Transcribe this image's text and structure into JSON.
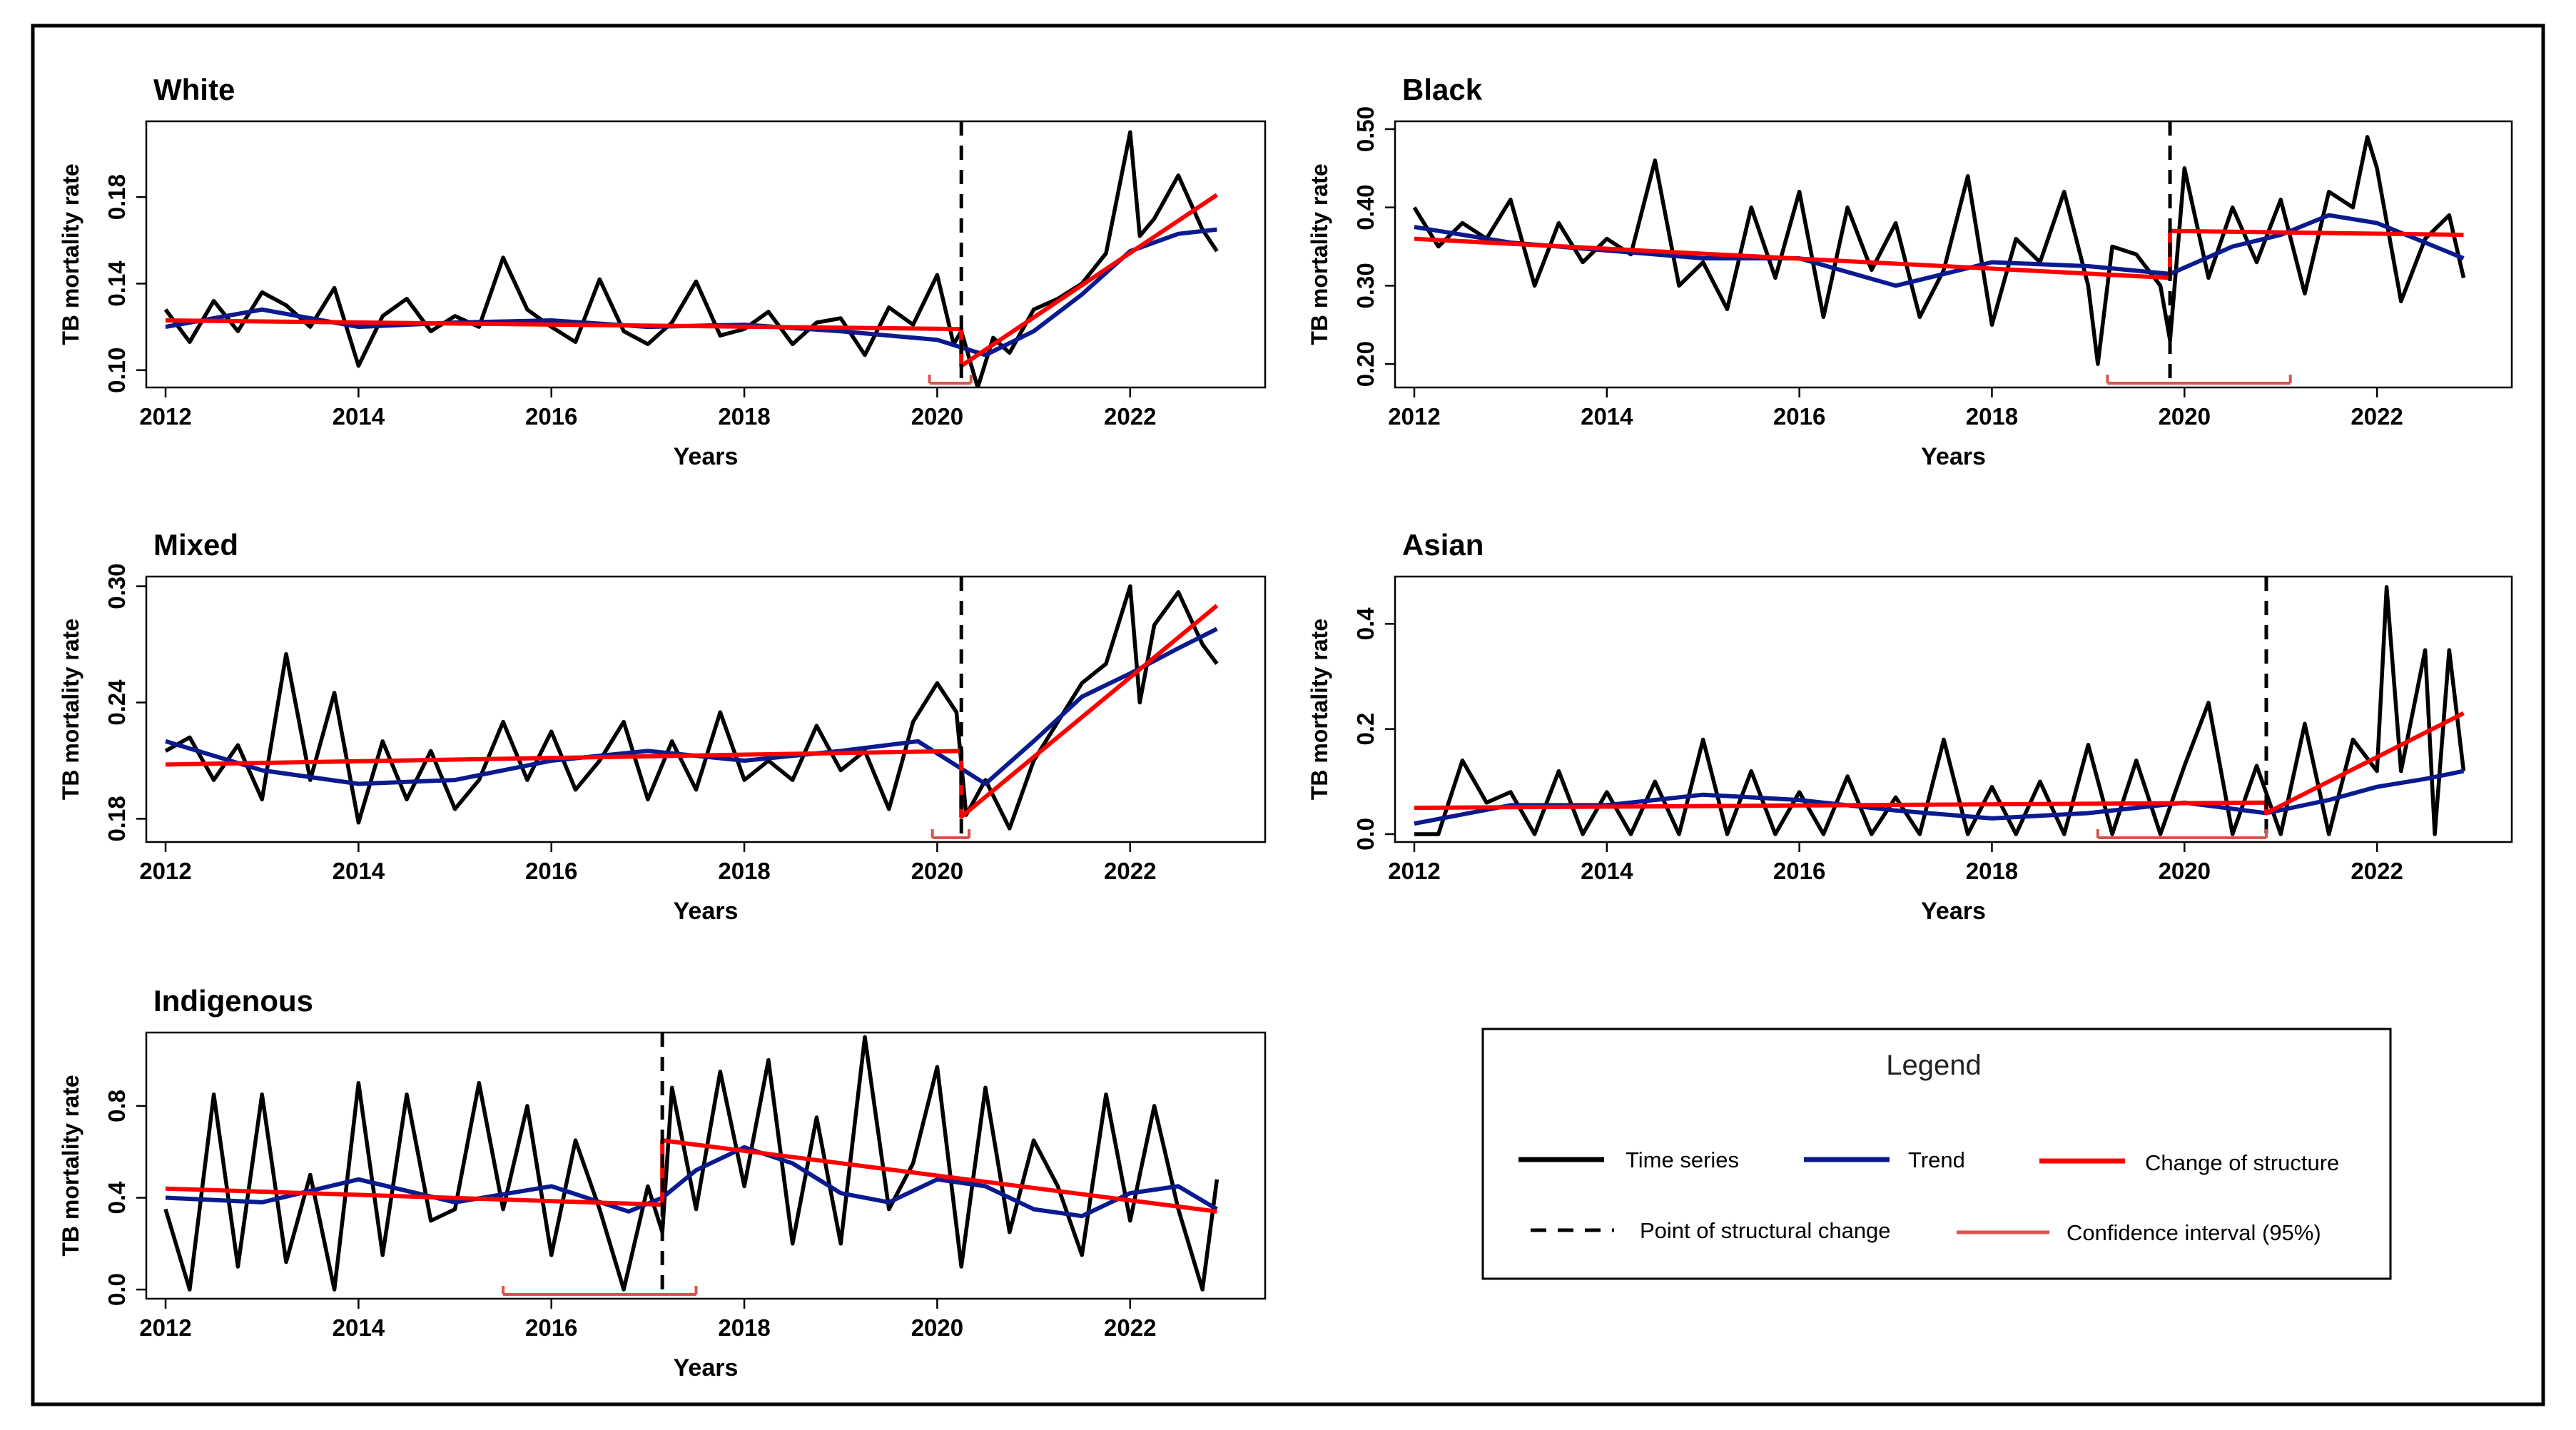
{
  "chart_data": [
    {
      "type": "line",
      "title": "White",
      "xlabel": "Years",
      "ylabel": "TB mortality rate",
      "xlim": [
        2011.8,
        2023.4
      ],
      "ylim": [
        0.092,
        0.215
      ],
      "xticks": [
        2012,
        2014,
        2016,
        2018,
        2020,
        2022
      ],
      "yticks": [
        0.1,
        0.14,
        0.18
      ],
      "ytick_labels": [
        "0.10",
        "0.14",
        "0.18"
      ],
      "break_x": 2020.25,
      "ci": [
        2019.92,
        2020.35
      ],
      "series": [
        {
          "role": "time-series",
          "x": [
            2012,
            2012.25,
            2012.5,
            2012.75,
            2013,
            2013.25,
            2013.5,
            2013.75,
            2014,
            2014.25,
            2014.5,
            2014.75,
            2015,
            2015.25,
            2015.5,
            2015.75,
            2016,
            2016.25,
            2016.5,
            2016.75,
            2017,
            2017.25,
            2017.5,
            2017.75,
            2018,
            2018.25,
            2018.5,
            2018.75,
            2019,
            2019.25,
            2019.5,
            2019.75,
            2020,
            2020.17,
            2020.25,
            2020.42,
            2020.58,
            2020.75,
            2021,
            2021.25,
            2021.5,
            2021.75,
            2022,
            2022.1,
            2022.25,
            2022.5,
            2022.75,
            2022.9
          ],
          "y": [
            0.128,
            0.113,
            0.132,
            0.118,
            0.136,
            0.13,
            0.12,
            0.138,
            0.102,
            0.125,
            0.133,
            0.118,
            0.125,
            0.12,
            0.152,
            0.128,
            0.12,
            0.113,
            0.142,
            0.118,
            0.112,
            0.122,
            0.141,
            0.116,
            0.119,
            0.127,
            0.112,
            0.122,
            0.124,
            0.107,
            0.129,
            0.121,
            0.144,
            0.112,
            0.118,
            0.092,
            0.115,
            0.108,
            0.128,
            0.133,
            0.14,
            0.154,
            0.21,
            0.162,
            0.17,
            0.19,
            0.165,
            0.155
          ]
        },
        {
          "role": "trend",
          "x": [
            2012,
            2013,
            2014,
            2015,
            2016,
            2017,
            2018,
            2019,
            2020,
            2020.5,
            2021,
            2021.5,
            2022,
            2022.5,
            2022.9
          ],
          "y": [
            0.12,
            0.128,
            0.12,
            0.122,
            0.123,
            0.12,
            0.121,
            0.118,
            0.114,
            0.107,
            0.118,
            0.135,
            0.155,
            0.163,
            0.165
          ]
        },
        {
          "role": "change-of-structure",
          "x": [
            2012,
            2020.25,
            2020.25,
            2022.9
          ],
          "y": [
            0.123,
            0.119,
            0.102,
            0.181
          ]
        }
      ]
    },
    {
      "type": "line",
      "title": "Black",
      "xlabel": "Years",
      "ylabel": "TB mortality rate",
      "xlim": [
        2011.8,
        2023.4
      ],
      "ylim": [
        0.17,
        0.51
      ],
      "xticks": [
        2012,
        2014,
        2016,
        2018,
        2020,
        2022
      ],
      "yticks": [
        0.2,
        0.3,
        0.4,
        0.5
      ],
      "ytick_labels": [
        "0.20",
        "0.30",
        "0.40",
        "0.50"
      ],
      "break_x": 2019.85,
      "ci": [
        2019.2,
        2021.1
      ],
      "series": [
        {
          "role": "time-series",
          "x": [
            2012,
            2012.25,
            2012.5,
            2012.75,
            2013,
            2013.25,
            2013.5,
            2013.75,
            2014,
            2014.25,
            2014.5,
            2014.75,
            2015,
            2015.25,
            2015.5,
            2015.75,
            2016,
            2016.25,
            2016.5,
            2016.75,
            2017,
            2017.25,
            2017.5,
            2017.75,
            2018,
            2018.25,
            2018.5,
            2018.75,
            2019,
            2019.1,
            2019.25,
            2019.5,
            2019.75,
            2019.85,
            2020,
            2020.25,
            2020.5,
            2020.75,
            2021,
            2021.25,
            2021.5,
            2021.75,
            2021.9,
            2022,
            2022.25,
            2022.5,
            2022.75,
            2022.9
          ],
          "y": [
            0.4,
            0.35,
            0.38,
            0.36,
            0.41,
            0.3,
            0.38,
            0.33,
            0.36,
            0.34,
            0.46,
            0.3,
            0.33,
            0.27,
            0.4,
            0.31,
            0.42,
            0.26,
            0.4,
            0.32,
            0.38,
            0.26,
            0.32,
            0.44,
            0.25,
            0.36,
            0.33,
            0.42,
            0.3,
            0.2,
            0.35,
            0.34,
            0.3,
            0.23,
            0.45,
            0.31,
            0.4,
            0.33,
            0.41,
            0.29,
            0.42,
            0.4,
            0.49,
            0.45,
            0.28,
            0.36,
            0.39,
            0.31
          ]
        },
        {
          "role": "trend",
          "x": [
            2012,
            2013,
            2014,
            2015,
            2016,
            2017,
            2018,
            2019,
            2019.85,
            2020.5,
            2021,
            2021.5,
            2022,
            2022.5,
            2022.9
          ],
          "y": [
            0.375,
            0.355,
            0.345,
            0.335,
            0.335,
            0.3,
            0.33,
            0.325,
            0.315,
            0.35,
            0.365,
            0.39,
            0.38,
            0.355,
            0.335
          ]
        },
        {
          "role": "change-of-structure",
          "x": [
            2012,
            2019.85,
            2019.85,
            2022.9
          ],
          "y": [
            0.36,
            0.31,
            0.37,
            0.365
          ]
        }
      ]
    },
    {
      "type": "line",
      "title": "Mixed",
      "xlabel": "Years",
      "ylabel": "TB mortality rate",
      "xlim": [
        2011.8,
        2023.4
      ],
      "ylim": [
        0.168,
        0.305
      ],
      "xticks": [
        2012,
        2014,
        2016,
        2018,
        2020,
        2022
      ],
      "yticks": [
        0.18,
        0.24,
        0.3
      ],
      "ytick_labels": [
        "0.18",
        "0.24",
        "0.30"
      ],
      "break_x": 2020.25,
      "ci": [
        2019.95,
        2020.33
      ],
      "series": [
        {
          "role": "time-series",
          "x": [
            2012,
            2012.25,
            2012.5,
            2012.75,
            2013,
            2013.25,
            2013.5,
            2013.75,
            2014,
            2014.25,
            2014.5,
            2014.75,
            2015,
            2015.25,
            2015.5,
            2015.75,
            2016,
            2016.25,
            2016.5,
            2016.75,
            2017,
            2017.25,
            2017.5,
            2017.75,
            2018,
            2018.25,
            2018.5,
            2018.75,
            2019,
            2019.25,
            2019.5,
            2019.75,
            2020,
            2020.2,
            2020.3,
            2020.5,
            2020.75,
            2021,
            2021.25,
            2021.5,
            2021.75,
            2022,
            2022.1,
            2022.25,
            2022.5,
            2022.75,
            2022.9
          ],
          "y": [
            0.215,
            0.222,
            0.2,
            0.218,
            0.19,
            0.265,
            0.2,
            0.245,
            0.178,
            0.22,
            0.19,
            0.215,
            0.185,
            0.2,
            0.23,
            0.2,
            0.225,
            0.195,
            0.21,
            0.23,
            0.19,
            0.22,
            0.195,
            0.235,
            0.2,
            0.21,
            0.2,
            0.228,
            0.205,
            0.215,
            0.185,
            0.23,
            0.25,
            0.235,
            0.182,
            0.2,
            0.175,
            0.21,
            0.23,
            0.25,
            0.26,
            0.3,
            0.24,
            0.28,
            0.297,
            0.27,
            0.26
          ]
        },
        {
          "role": "trend",
          "x": [
            2012,
            2013,
            2014,
            2015,
            2016,
            2017,
            2018,
            2019,
            2019.8,
            2020.5,
            2021,
            2021.5,
            2022,
            2022.5,
            2022.9
          ],
          "y": [
            0.22,
            0.205,
            0.198,
            0.2,
            0.21,
            0.215,
            0.21,
            0.215,
            0.22,
            0.198,
            0.22,
            0.243,
            0.255,
            0.268,
            0.278
          ]
        },
        {
          "role": "change-of-structure",
          "x": [
            2012,
            2020.25,
            2020.25,
            2022.9
          ],
          "y": [
            0.208,
            0.215,
            0.181,
            0.29
          ]
        }
      ]
    },
    {
      "type": "line",
      "title": "Asian",
      "xlabel": "Years",
      "ylabel": "TB mortality rate",
      "xlim": [
        2011.8,
        2023.4
      ],
      "ylim": [
        -0.015,
        0.49
      ],
      "xticks": [
        2012,
        2014,
        2016,
        2018,
        2020,
        2022
      ],
      "yticks": [
        0.0,
        0.2,
        0.4
      ],
      "ytick_labels": [
        "0.0",
        "0.2",
        "0.4"
      ],
      "break_x": 2020.85,
      "ci": [
        2019.1,
        2020.85
      ],
      "series": [
        {
          "role": "time-series",
          "x": [
            2012,
            2012.25,
            2012.5,
            2012.75,
            2013,
            2013.25,
            2013.5,
            2013.75,
            2014,
            2014.25,
            2014.5,
            2014.75,
            2015,
            2015.25,
            2015.5,
            2015.75,
            2016,
            2016.25,
            2016.5,
            2016.75,
            2017,
            2017.25,
            2017.5,
            2017.75,
            2018,
            2018.25,
            2018.5,
            2018.75,
            2019,
            2019.25,
            2019.5,
            2019.75,
            2020,
            2020.25,
            2020.5,
            2020.75,
            2021,
            2021.25,
            2021.5,
            2021.75,
            2022,
            2022.1,
            2022.25,
            2022.5,
            2022.6,
            2022.75,
            2022.9
          ],
          "y": [
            0.0,
            0.0,
            0.14,
            0.06,
            0.08,
            0.0,
            0.12,
            0.0,
            0.08,
            0.0,
            0.1,
            0.0,
            0.18,
            0.0,
            0.12,
            0.0,
            0.08,
            0.0,
            0.11,
            0.0,
            0.07,
            0.0,
            0.18,
            0.0,
            0.09,
            0.0,
            0.1,
            0.0,
            0.17,
            0.0,
            0.14,
            0.0,
            0.13,
            0.25,
            0.0,
            0.13,
            0.0,
            0.21,
            0.0,
            0.18,
            0.12,
            0.47,
            0.12,
            0.35,
            0.0,
            0.35,
            0.12
          ]
        },
        {
          "role": "trend",
          "x": [
            2012,
            2013,
            2014,
            2015,
            2016,
            2017,
            2018,
            2019,
            2020,
            2020.85,
            2021.5,
            2022,
            2022.5,
            2022.9
          ],
          "y": [
            0.02,
            0.055,
            0.055,
            0.075,
            0.065,
            0.045,
            0.03,
            0.04,
            0.06,
            0.04,
            0.065,
            0.09,
            0.105,
            0.12
          ]
        },
        {
          "role": "change-of-structure",
          "x": [
            2012,
            2020.85,
            2020.85,
            2022.9
          ],
          "y": [
            0.05,
            0.06,
            0.04,
            0.23
          ]
        }
      ]
    },
    {
      "type": "line",
      "title": "Indigenous",
      "xlabel": "Years",
      "ylabel": "TB mortality rate",
      "xlim": [
        2011.8,
        2023.4
      ],
      "ylim": [
        -0.04,
        1.12
      ],
      "xticks": [
        2012,
        2014,
        2016,
        2018,
        2020,
        2022
      ],
      "yticks": [
        0.0,
        0.4,
        0.8
      ],
      "ytick_labels": [
        "0.0",
        "0.4",
        "0.8"
      ],
      "break_x": 2017.15,
      "ci": [
        2015.5,
        2017.5
      ],
      "series": [
        {
          "role": "time-series",
          "x": [
            2012,
            2012.25,
            2012.5,
            2012.75,
            2013,
            2013.25,
            2013.5,
            2013.75,
            2014,
            2014.25,
            2014.5,
            2014.75,
            2015,
            2015.25,
            2015.5,
            2015.75,
            2016,
            2016.25,
            2016.5,
            2016.75,
            2017,
            2017.15,
            2017.25,
            2017.5,
            2017.75,
            2018,
            2018.25,
            2018.5,
            2018.75,
            2019,
            2019.25,
            2019.5,
            2019.75,
            2020,
            2020.25,
            2020.5,
            2020.75,
            2021,
            2021.25,
            2021.5,
            2021.75,
            2022,
            2022.25,
            2022.5,
            2022.75,
            2022.9
          ],
          "y": [
            0.35,
            0.0,
            0.85,
            0.1,
            0.85,
            0.12,
            0.5,
            0.0,
            0.9,
            0.15,
            0.85,
            0.3,
            0.35,
            0.9,
            0.35,
            0.8,
            0.15,
            0.65,
            0.35,
            0.0,
            0.45,
            0.25,
            0.88,
            0.35,
            0.95,
            0.45,
            1.0,
            0.2,
            0.75,
            0.2,
            1.1,
            0.35,
            0.55,
            0.97,
            0.1,
            0.88,
            0.25,
            0.65,
            0.45,
            0.15,
            0.85,
            0.3,
            0.8,
            0.35,
            0.0,
            0.48
          ]
        },
        {
          "role": "trend",
          "x": [
            2012,
            2013,
            2014,
            2015,
            2016,
            2016.8,
            2017.15,
            2017.5,
            2018,
            2018.5,
            2019,
            2019.5,
            2020,
            2020.5,
            2021,
            2021.5,
            2022,
            2022.5,
            2022.9
          ],
          "y": [
            0.4,
            0.38,
            0.48,
            0.38,
            0.45,
            0.34,
            0.4,
            0.52,
            0.62,
            0.55,
            0.42,
            0.38,
            0.48,
            0.45,
            0.35,
            0.32,
            0.42,
            0.45,
            0.35
          ]
        },
        {
          "role": "change-of-structure",
          "x": [
            2012,
            2017.15,
            2017.15,
            2022.9
          ],
          "y": [
            0.44,
            0.37,
            0.65,
            0.34
          ]
        }
      ]
    }
  ],
  "legend": {
    "title": "Legend",
    "time_series": "Time series",
    "trend": "Trend",
    "change": "Change of structure",
    "break": "Point of structural change",
    "ci": "Confidence interval (95%)"
  },
  "colors": {
    "time_series": "#000000",
    "trend": "#0a1a8f",
    "change": "#ff0000",
    "ci": "#d9534f",
    "frame": "#000000"
  }
}
